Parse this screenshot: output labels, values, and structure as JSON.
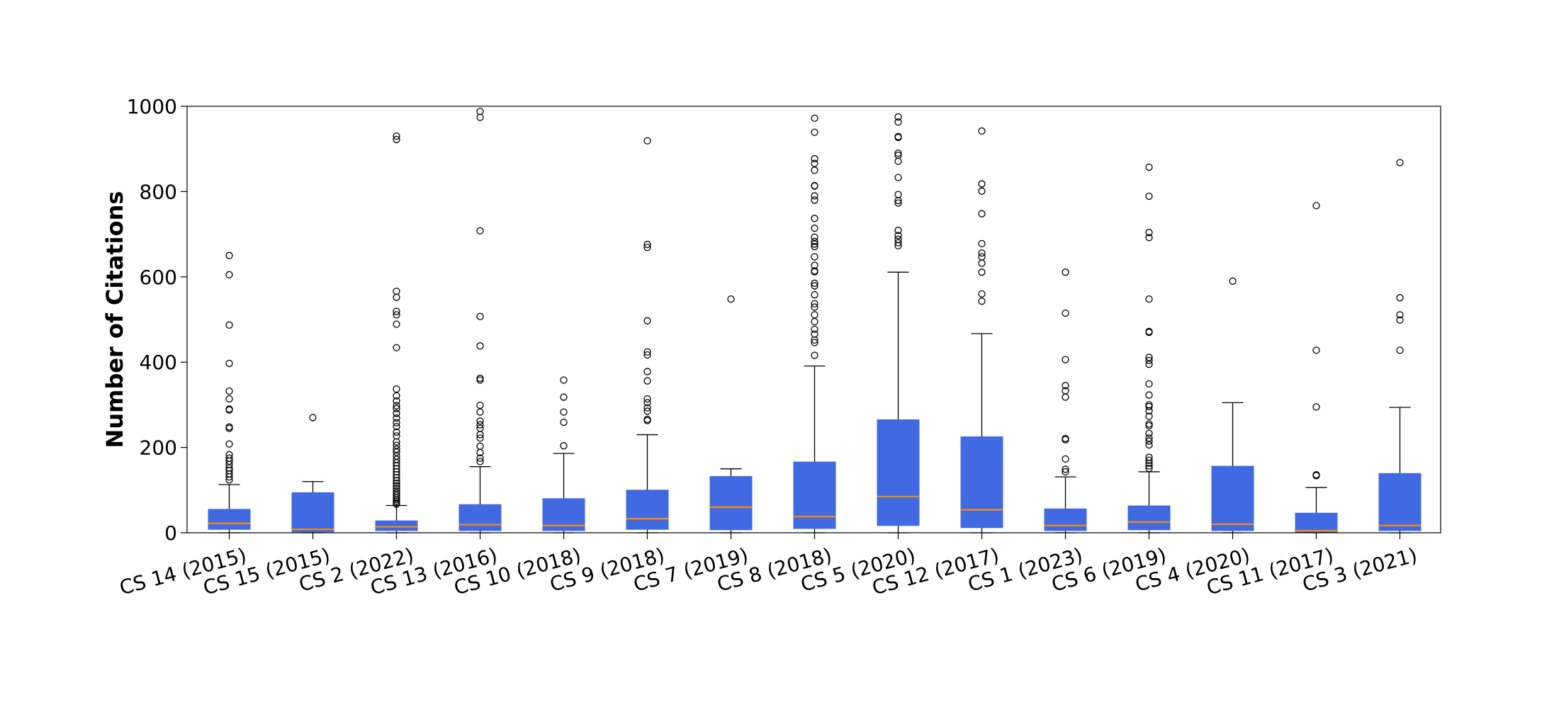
{
  "chart_data": {
    "type": "box",
    "title": "",
    "xlabel": "",
    "ylabel": "Number of Citations",
    "ylim": [
      0,
      1000
    ],
    "yticks": [
      0,
      200,
      400,
      600,
      800,
      1000
    ],
    "grid": false,
    "legend": "none",
    "colors": {
      "box": "#4169e1",
      "median": "#ff8c00",
      "whisker": "#000000",
      "outlier": "#000000"
    },
    "categories": [
      "CS 14 (2015)",
      "CS 15 (2015)",
      "CS 2 (2022)",
      "CS 13 (2016)",
      "CS 10 (2018)",
      "CS 9 (2018)",
      "CS 7 (2019)",
      "CS 8 (2018)",
      "CS 5 (2020)",
      "CS 12 (2017)",
      "CS 1 (2023)",
      "CS 6 (2019)",
      "CS 4 (2020)",
      "CS 11 (2017)",
      "CS 3 (2021)"
    ],
    "boxes": [
      {
        "whislo": 0,
        "q1": 8,
        "med": 22,
        "q3": 55,
        "whishi": 113,
        "fliers": [
          650,
          605,
          487,
          397,
          332,
          314,
          290,
          288,
          248,
          245,
          208,
          183,
          175,
          168,
          160,
          152,
          146,
          138,
          131,
          124
        ]
      },
      {
        "whislo": 0,
        "q1": 2,
        "med": 8,
        "q3": 94,
        "whishi": 120,
        "fliers": [
          270
        ]
      },
      {
        "whislo": 0,
        "q1": 5,
        "med": 14,
        "q3": 28,
        "whishi": 64,
        "fliers": [
          930,
          922,
          566,
          552,
          519,
          511,
          489,
          434,
          337,
          321,
          309,
          298,
          291,
          280,
          269,
          258,
          249,
          236,
          227,
          213,
          205,
          196,
          189,
          180,
          172,
          164,
          157,
          150,
          143,
          136,
          129,
          122,
          116,
          110,
          104,
          98,
          93,
          88,
          83,
          78,
          74,
          70,
          67
        ]
      },
      {
        "whislo": 0,
        "q1": 5,
        "med": 19,
        "q3": 66,
        "whishi": 155,
        "fliers": [
          988,
          974,
          708,
          507,
          438,
          362,
          358,
          299,
          283,
          262,
          253,
          245,
          230,
          222,
          203,
          188,
          175,
          167
        ]
      },
      {
        "whislo": 0,
        "q1": 5,
        "med": 17,
        "q3": 80,
        "whishi": 186,
        "fliers": [
          358,
          318,
          283,
          259,
          204
        ]
      },
      {
        "whislo": 0,
        "q1": 8,
        "med": 33,
        "q3": 100,
        "whishi": 230,
        "fliers": [
          919,
          676,
          669,
          497,
          424,
          417,
          378,
          356,
          314,
          305,
          293,
          285,
          266,
          263
        ]
      },
      {
        "whislo": 0,
        "q1": 7,
        "med": 60,
        "q3": 132,
        "whishi": 150,
        "fliers": [
          548
        ]
      },
      {
        "whislo": 0,
        "q1": 10,
        "med": 38,
        "q3": 166,
        "whishi": 391,
        "fliers": [
          972,
          939,
          877,
          866,
          850,
          814,
          813,
          790,
          780,
          737,
          714,
          693,
          683,
          677,
          671,
          647,
          627,
          614,
          612,
          585,
          579,
          558,
          537,
          529,
          511,
          495,
          477,
          466,
          452,
          446,
          416
        ]
      },
      {
        "whislo": 0,
        "q1": 17,
        "med": 85,
        "q3": 265,
        "whishi": 611,
        "fliers": [
          975,
          963,
          929,
          927,
          890,
          885,
          871,
          833,
          793,
          779,
          773,
          709,
          697,
          688,
          680,
          673
        ]
      },
      {
        "whislo": 0,
        "q1": 12,
        "med": 54,
        "q3": 225,
        "whishi": 467,
        "fliers": [
          942,
          818,
          801,
          748,
          678,
          656,
          647,
          632,
          611,
          560,
          543
        ]
      },
      {
        "whislo": 0,
        "q1": 5,
        "med": 17,
        "q3": 56,
        "whishi": 131,
        "fliers": [
          611,
          515,
          406,
          345,
          333,
          318,
          221,
          218,
          173,
          149,
          143
        ]
      },
      {
        "whislo": 0,
        "q1": 7,
        "med": 25,
        "q3": 63,
        "whishi": 143,
        "fliers": [
          857,
          789,
          704,
          692,
          548,
          472,
          470,
          411,
          404,
          395,
          349,
          323,
          300,
          296,
          286,
          273,
          255,
          251,
          233,
          222,
          215,
          206,
          177,
          170,
          163,
          157,
          151
        ]
      },
      {
        "whislo": 0,
        "q1": 5,
        "med": 20,
        "q3": 156,
        "whishi": 305,
        "fliers": [
          590
        ]
      },
      {
        "whislo": 0,
        "q1": 1,
        "med": 5,
        "q3": 46,
        "whishi": 106,
        "fliers": [
          767,
          428,
          295,
          136,
          134
        ]
      },
      {
        "whislo": 0,
        "q1": 5,
        "med": 17,
        "q3": 139,
        "whishi": 294,
        "fliers": [
          868,
          551,
          511,
          499,
          428
        ]
      }
    ]
  }
}
